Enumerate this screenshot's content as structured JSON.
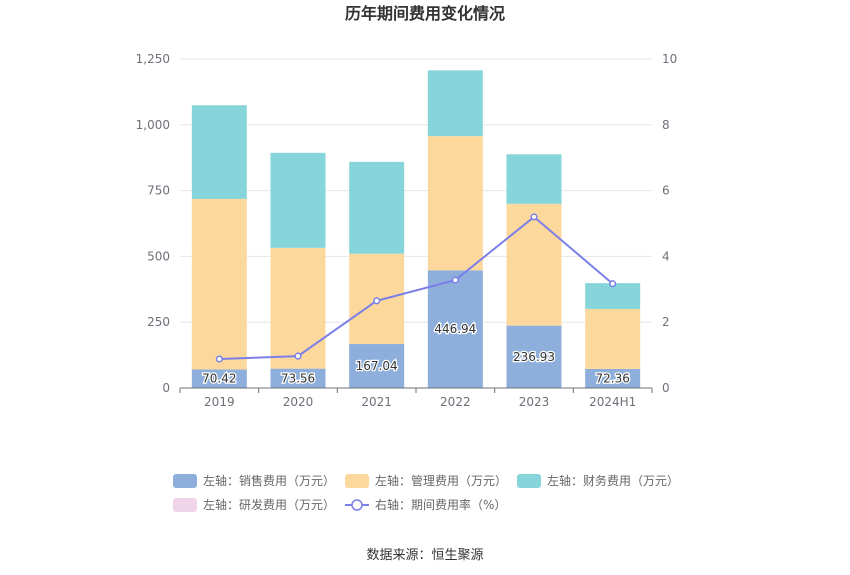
{
  "chart_data": {
    "type": "bar",
    "title": "历年期间费用变化情况",
    "categories": [
      "2019",
      "2020",
      "2021",
      "2022",
      "2023",
      "2024H1"
    ],
    "y_left": {
      "ylim": [
        0,
        1250
      ],
      "ticks": [
        0,
        250,
        500,
        750,
        1000,
        1250
      ],
      "tick_labels": [
        "0",
        "250",
        "500",
        "750",
        "1,000",
        "1,250"
      ]
    },
    "y_right": {
      "ylim": [
        0,
        10
      ],
      "ticks": [
        0,
        2,
        4,
        6,
        8,
        10
      ],
      "tick_labels": [
        "0",
        "2",
        "4",
        "6",
        "8",
        "10"
      ]
    },
    "series": [
      {
        "name": "左轴：销售费用（万元）",
        "kind": "bar",
        "axis": "left",
        "color": "#8eaedb",
        "values": [
          70.42,
          73.56,
          167.04,
          446.94,
          236.93,
          72.36
        ],
        "labels": [
          "70.42",
          "73.56",
          "167.04",
          "446.94",
          "236.93",
          "72.36"
        ]
      },
      {
        "name": "左轴：管理费用（万元）",
        "kind": "bar",
        "axis": "left",
        "color": "#fdd89d",
        "values": [
          648,
          459,
          343,
          510,
          463,
          228
        ]
      },
      {
        "name": "左轴：财务费用（万元）",
        "kind": "bar",
        "axis": "left",
        "color": "#86d5da",
        "values": [
          356,
          361,
          349,
          250,
          188,
          98
        ]
      },
      {
        "name": "左轴：研发费用（万元）",
        "kind": "bar",
        "axis": "left",
        "color": "#f0d4ea",
        "values": [
          0,
          0,
          0,
          0,
          0,
          0
        ]
      },
      {
        "name": "右轴：期间费用率（%）",
        "kind": "line",
        "axis": "right",
        "color": "#7b7fe8",
        "values": [
          0.88,
          0.97,
          2.65,
          3.28,
          5.2,
          3.17
        ]
      }
    ],
    "grid": true,
    "legend_position": "bottom"
  },
  "source": "数据来源：恒生聚源"
}
